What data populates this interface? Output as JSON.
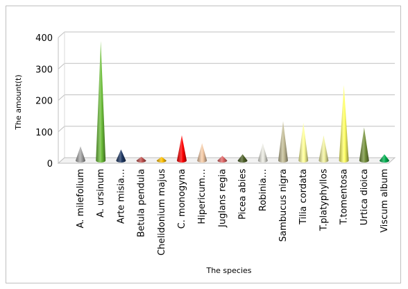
{
  "chart_data": {
    "type": "bar",
    "style": "3d-cones",
    "title": "",
    "xlabel": "The species",
    "ylabel": "The amount(t)",
    "ylim": [
      0,
      400
    ],
    "yticks": [
      0,
      100,
      200,
      300,
      400
    ],
    "grid": true,
    "legend": "none",
    "categories": [
      "A. milefolium",
      "A. ursinum",
      "Arte misia…",
      "Betula pendula",
      "Chelidonium majus",
      "C. monogyna",
      "Hipericum…",
      "Juglans regia",
      "Picea abies",
      "Robinia…",
      "Sambucus nigra",
      "Tilia cordata",
      "T.platyphyllos",
      "T.tomentosa",
      "Urtica dioica",
      "Viscum album"
    ],
    "values": [
      45,
      380,
      35,
      12,
      12,
      80,
      55,
      15,
      20,
      55,
      125,
      120,
      80,
      240,
      105,
      20
    ],
    "colors": [
      "#a6a6a6",
      "#6dbf3a",
      "#1f3864",
      "#c0504d",
      "#ffc000",
      "#ff0000",
      "#f5cba7",
      "#e06666",
      "#4f6228",
      "#e8e8e0",
      "#c4bd97",
      "#ffff99",
      "#f2f2a0",
      "#ffff66",
      "#76923c",
      "#00b050"
    ]
  }
}
